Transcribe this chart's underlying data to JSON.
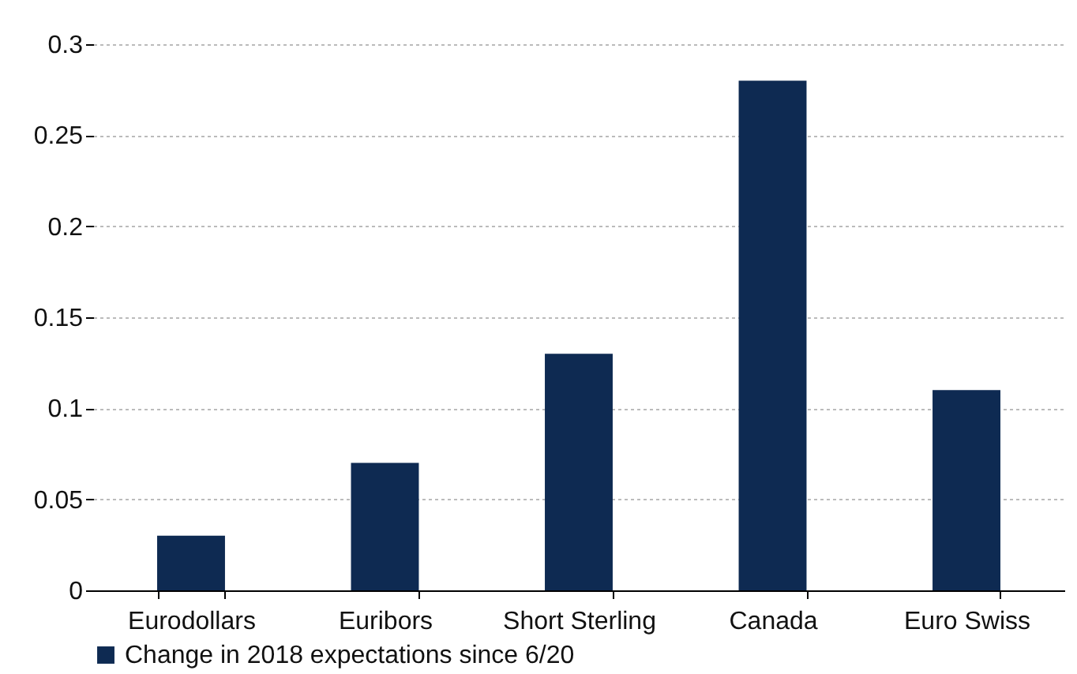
{
  "chart_data": {
    "type": "bar",
    "categories": [
      "Eurodollars",
      "Euribors",
      "Short Sterling",
      "Canada",
      "Euro Swiss"
    ],
    "series": [
      {
        "name": "Change in 2018 expectations since 6/20",
        "color": "#0e2a52",
        "values": [
          0.03,
          0.07,
          0.13,
          0.28,
          0.11
        ]
      }
    ],
    "ylim": [
      0,
      0.3
    ],
    "yticks": [
      0,
      0.05,
      0.1,
      0.15,
      0.2,
      0.25,
      0.3
    ],
    "grid": "y",
    "legend": "bottom"
  }
}
